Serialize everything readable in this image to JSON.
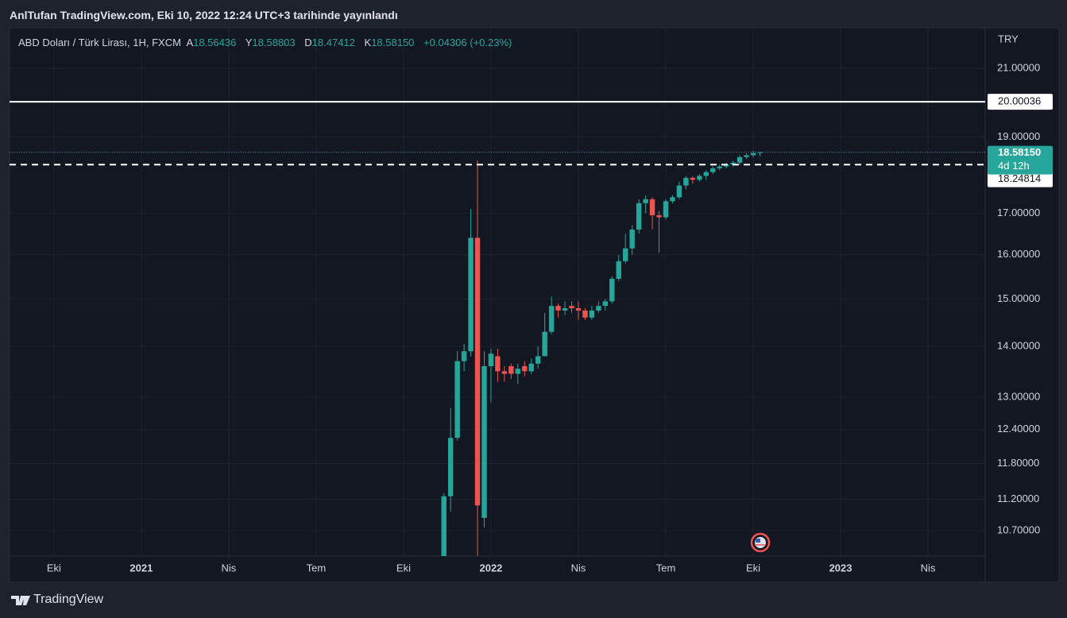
{
  "header": {
    "title": "AnlTufan TradingView.com, Eki 10, 2022 12:24 UTC+3 tarihinde yayınlandı"
  },
  "footer": {
    "brand": "TradingView"
  },
  "chart_data": {
    "type": "candlestick",
    "symbol": "ABD Doları / Türk Lirası, 1H, FXCM",
    "ohlc": [
      {
        "label": "A",
        "value": "18.56436"
      },
      {
        "label": "Y",
        "value": "18.58803"
      },
      {
        "label": "D",
        "value": "18.47412"
      },
      {
        "label": "K",
        "value": "18.58150"
      }
    ],
    "change": "+0.04306 (+0.23%)",
    "y_unit": "TRY",
    "log_scale": true,
    "grid": true,
    "up_color": "#26a69a",
    "down_color": "#ef5350",
    "ylim": [
      10.31,
      22.28
    ],
    "yticks": [
      {
        "value": 21,
        "label": "21.00000"
      },
      {
        "value": 19,
        "label": "19.00000"
      },
      {
        "value": 17,
        "label": "17.00000"
      },
      {
        "value": 16,
        "label": "16.00000"
      },
      {
        "value": 15,
        "label": "15.00000"
      },
      {
        "value": 14,
        "label": "14.00000"
      },
      {
        "value": 13,
        "label": "13.00000"
      },
      {
        "value": 12.4,
        "label": "12.40000"
      },
      {
        "value": 11.8,
        "label": "11.80000"
      },
      {
        "value": 11.2,
        "label": "11.20000"
      },
      {
        "value": 10.7,
        "label": "10.70000"
      }
    ],
    "xlim": [
      -6.6,
      138.5
    ],
    "xticks": [
      {
        "value": 0,
        "label": "Eki"
      },
      {
        "value": 13,
        "label": "2021"
      },
      {
        "value": 26,
        "label": "Nis"
      },
      {
        "value": 39,
        "label": "Tem"
      },
      {
        "value": 52,
        "label": "Eki"
      },
      {
        "value": 65,
        "label": "2022"
      },
      {
        "value": 78,
        "label": "Nis"
      },
      {
        "value": 91,
        "label": "Tem"
      },
      {
        "value": 104,
        "label": "Eki"
      },
      {
        "value": 117,
        "label": "2023"
      },
      {
        "value": 130,
        "label": "Nis"
      }
    ],
    "x": [
      58,
      59,
      60,
      61,
      62,
      63,
      64,
      65,
      66,
      67,
      68,
      69,
      70,
      71,
      72,
      73,
      74,
      75,
      76,
      77,
      78,
      79,
      80,
      81,
      82,
      83,
      84,
      85,
      86,
      87,
      88,
      89,
      90,
      91,
      92,
      93,
      94,
      95,
      96,
      97,
      98,
      99,
      100,
      101,
      102,
      103,
      104,
      105
    ],
    "open": [
      10.2,
      11.25,
      12.25,
      13.7,
      13.9,
      16.4,
      10.9,
      13.6,
      13.8,
      13.5,
      13.6,
      13.45,
      13.6,
      13.5,
      13.65,
      13.8,
      14.3,
      14.85,
      14.75,
      14.85,
      14.8,
      14.75,
      14.6,
      14.75,
      14.85,
      14.95,
      15.45,
      15.85,
      16.15,
      16.6,
      17.25,
      17.35,
      16.95,
      16.9,
      17.3,
      17.4,
      17.7,
      17.9,
      17.85,
      17.95,
      18.05,
      18.15,
      18.2,
      18.25,
      18.3,
      18.45,
      18.5,
      18.56436
    ],
    "high": [
      11.3,
      12.8,
      13.9,
      14.05,
      17.1,
      18.36,
      13.9,
      13.95,
      13.95,
      13.6,
      13.65,
      13.65,
      13.7,
      13.75,
      14.0,
      14.7,
      15.05,
      14.9,
      14.95,
      14.95,
      14.95,
      14.8,
      14.85,
      14.95,
      15.0,
      15.5,
      16.0,
      16.5,
      16.7,
      17.35,
      17.45,
      17.4,
      17.05,
      17.35,
      17.45,
      17.8,
      17.95,
      17.95,
      18.0,
      18.1,
      18.2,
      18.25,
      18.3,
      18.35,
      18.5,
      18.55,
      18.62,
      18.58803
    ],
    "low": [
      10.1,
      11.0,
      12.2,
      13.5,
      13.8,
      10.25,
      10.75,
      12.9,
      13.3,
      13.3,
      13.35,
      13.25,
      13.4,
      13.45,
      13.55,
      13.8,
      14.25,
      14.6,
      14.65,
      14.7,
      14.55,
      14.55,
      14.55,
      14.7,
      14.75,
      14.9,
      15.4,
      15.8,
      16.0,
      16.5,
      17.0,
      16.6,
      16.05,
      16.85,
      17.25,
      17.35,
      17.6,
      17.75,
      17.8,
      17.85,
      18.0,
      18.1,
      18.15,
      18.2,
      18.25,
      18.4,
      18.45,
      18.47412
    ],
    "close": [
      11.25,
      12.25,
      13.7,
      13.9,
      16.4,
      11.1,
      13.6,
      13.85,
      13.5,
      13.45,
      13.45,
      13.55,
      13.5,
      13.65,
      13.8,
      14.3,
      14.85,
      14.75,
      14.8,
      14.8,
      14.75,
      14.6,
      14.75,
      14.85,
      14.95,
      15.45,
      15.85,
      16.15,
      16.6,
      17.25,
      17.35,
      16.95,
      16.9,
      17.3,
      17.4,
      17.7,
      17.9,
      17.85,
      17.95,
      18.05,
      18.15,
      18.2,
      18.25,
      18.3,
      18.45,
      18.5,
      18.56,
      18.5815
    ],
    "price_lines": [
      {
        "value": 20.00036,
        "style": "solid"
      },
      {
        "value": 18.24814,
        "style": "dashed"
      }
    ],
    "last_price": {
      "value": 18.5815,
      "label": "18.58150",
      "countdown": "4d 12h"
    }
  }
}
